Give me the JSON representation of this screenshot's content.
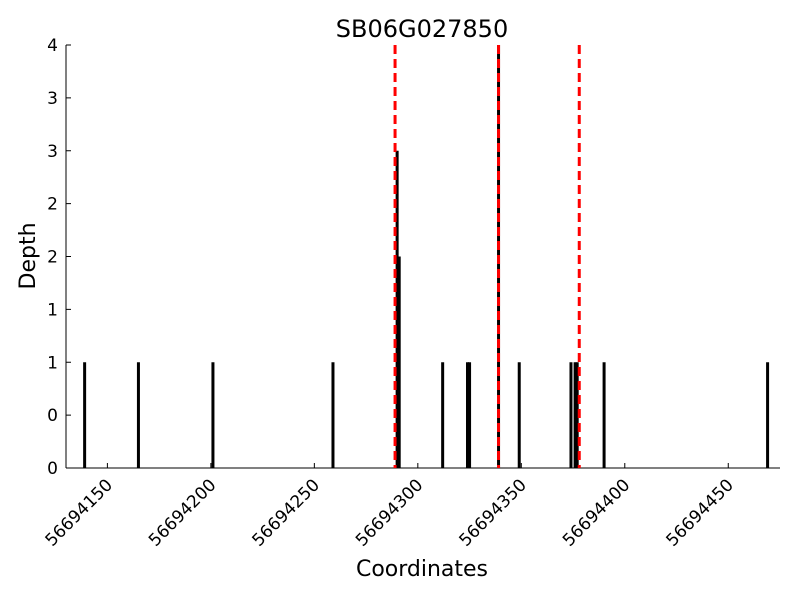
{
  "chart_data": {
    "type": "bar",
    "title": "SB06G027850",
    "xlabel": "Coordinates",
    "ylabel": "Depth",
    "xlim": [
      56694130,
      56694475
    ],
    "ylim": [
      0,
      4
    ],
    "x_ticks": [
      56694150,
      56694200,
      56694250,
      56694300,
      56694350,
      56694400,
      56694450
    ],
    "x_tick_labels": [
      "56694150",
      "56694200",
      "56694250",
      "56694300",
      "56694350",
      "56694400",
      "56694450"
    ],
    "y_ticks": [
      0,
      0.5,
      1,
      1.5,
      2,
      2.5,
      3,
      3.5,
      4
    ],
    "y_tick_labels": [
      "0",
      "0",
      "1",
      "1",
      "2",
      "2",
      "3",
      "3",
      "4"
    ],
    "grid": false,
    "bar_color": "#000000",
    "series": [
      {
        "x": [
          56694139,
          56694165,
          56694201,
          56694259,
          56694290,
          56694291,
          56694312,
          56694324,
          56694325,
          56694339,
          56694349,
          56694374,
          56694376,
          56694377,
          56694390,
          56694469
        ],
        "values": [
          1,
          1,
          1,
          1,
          3,
          2,
          1,
          1,
          1,
          4,
          1,
          1,
          1,
          1,
          1,
          1
        ]
      }
    ],
    "vlines": [
      {
        "x": 56694289,
        "color": "#ff0000",
        "style": "dashed"
      },
      {
        "x": 56694339,
        "color": "#ff0000",
        "style": "dashed"
      },
      {
        "x": 56694378,
        "color": "#ff0000",
        "style": "dashed"
      }
    ]
  }
}
